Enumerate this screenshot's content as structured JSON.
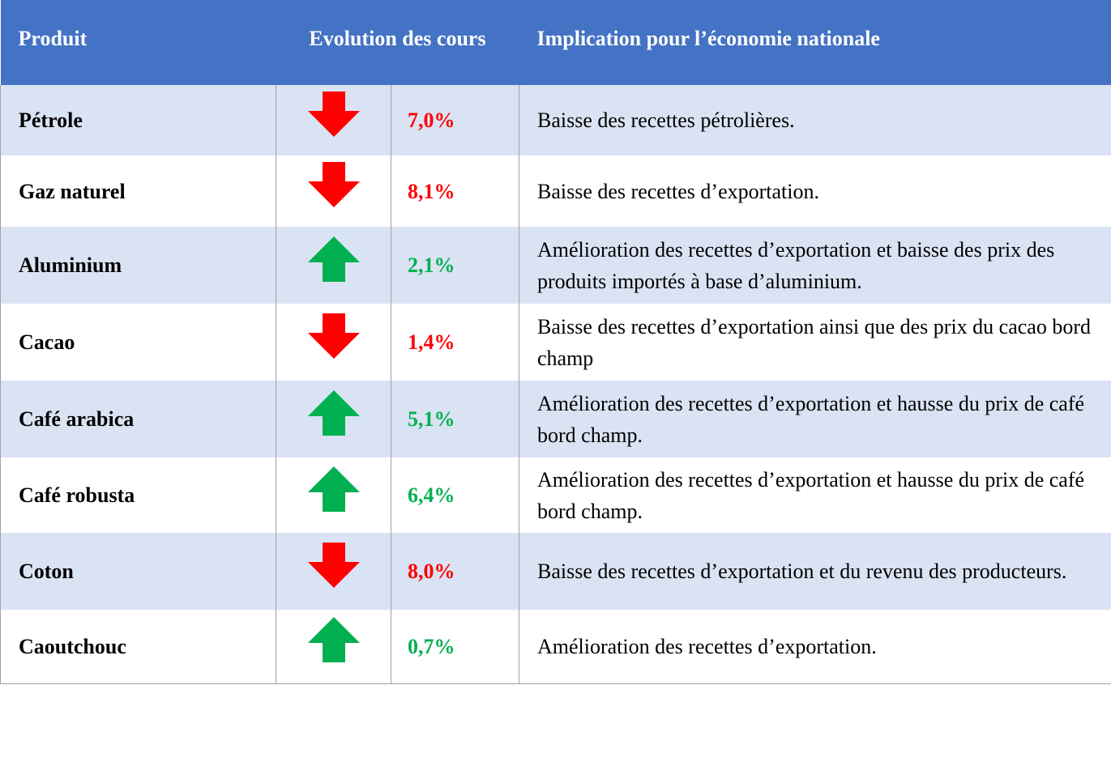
{
  "header": {
    "product": "Produit",
    "evolution": "Evolution des cours",
    "implication": "Implication pour l’économie nationale"
  },
  "colors": {
    "down": "#ff0000",
    "up": "#00b050"
  },
  "table": {
    "rows": [
      {
        "product": "Pétrole",
        "direction": "down",
        "change": "7,0%",
        "implication": "Baisse des recettes pétrolières."
      },
      {
        "product": "Gaz naturel",
        "direction": "down",
        "change": "8,1%",
        "implication": "Baisse des recettes d’exportation."
      },
      {
        "product": "Aluminium",
        "direction": "up",
        "change": "2,1%",
        "implication": "Amélioration des recettes d’exportation et baisse des prix des produits importés à base d’aluminium."
      },
      {
        "product": "Cacao",
        "direction": "down",
        "change": "1,4%",
        "implication": "Baisse des recettes d’exportation ainsi que des prix du cacao bord champ"
      },
      {
        "product": "Café arabica",
        "direction": "up",
        "change": "5,1%",
        "implication": "Amélioration des recettes d’exportation et hausse du prix de café bord champ."
      },
      {
        "product": "Café robusta",
        "direction": "up",
        "change": "6,4%",
        "implication": "Amélioration des recettes d’exportation et hausse du prix de café bord champ."
      },
      {
        "product": "Coton",
        "direction": "down",
        "change": "8,0%",
        "implication": "Baisse des recettes d’exportation et du revenu des producteurs."
      },
      {
        "product": "Caoutchouc",
        "direction": "up",
        "change": "0,7%",
        "implication": "Amélioration des recettes d’exportation."
      }
    ]
  }
}
